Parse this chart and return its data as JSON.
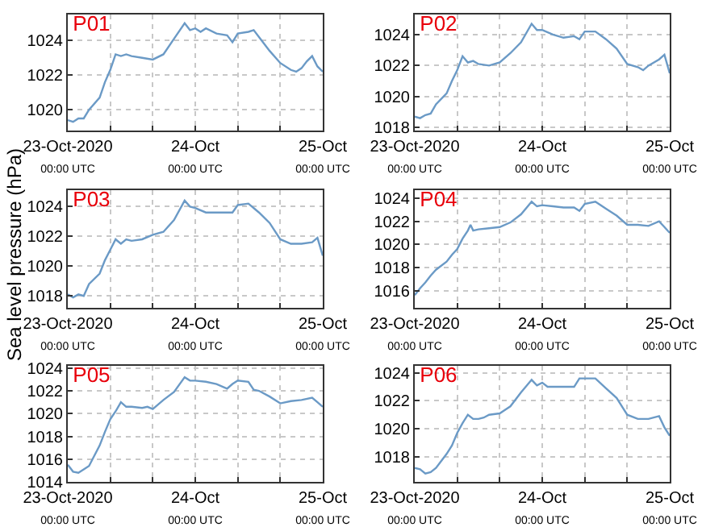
{
  "chart_data": [
    {
      "type": "line",
      "title": "P01",
      "grid": true,
      "ylim": [
        1018.8,
        1025.5
      ],
      "yticks": [
        1020,
        1022,
        1024
      ],
      "xlim": [
        "2020-10-23T00:00",
        "2020-10-25T00:00"
      ],
      "xticks": [
        {
          "value": "2020-10-23T00:00",
          "label": "23-Oct-2020\n00:00 UTC"
        },
        {
          "value": "2020-10-23T08:00",
          "label": null
        },
        {
          "value": "2020-10-23T16:00",
          "label": null
        },
        {
          "value": "2020-10-24T00:00",
          "label": "24-Oct\n00:00 UTC"
        },
        {
          "value": "2020-10-24T08:00",
          "label": null
        },
        {
          "value": "2020-10-24T16:00",
          "label": null
        },
        {
          "value": "2020-10-25T00:00",
          "label": "25-Oct\n00:00 UTC"
        }
      ],
      "x": [
        "2020-10-23T00:00",
        "2020-10-23T01:00",
        "2020-10-23T02:00",
        "2020-10-23T03:00",
        "2020-10-23T04:00",
        "2020-10-23T06:00",
        "2020-10-23T07:00",
        "2020-10-23T08:00",
        "2020-10-23T09:00",
        "2020-10-23T10:00",
        "2020-10-23T11:00",
        "2020-10-23T12:00",
        "2020-10-23T14:00",
        "2020-10-23T16:00",
        "2020-10-23T18:00",
        "2020-10-23T20:00",
        "2020-10-23T22:00",
        "2020-10-23T23:00",
        "2020-10-24T00:00",
        "2020-10-24T01:00",
        "2020-10-24T02:00",
        "2020-10-24T04:00",
        "2020-10-24T06:00",
        "2020-10-24T07:00",
        "2020-10-24T08:00",
        "2020-10-24T10:00",
        "2020-10-24T11:00",
        "2020-10-24T12:00",
        "2020-10-24T14:00",
        "2020-10-24T16:00",
        "2020-10-24T18:00",
        "2020-10-24T19:00",
        "2020-10-24T20:00",
        "2020-10-24T21:00",
        "2020-10-24T22:00",
        "2020-10-24T23:00",
        "2020-10-25T00:00"
      ],
      "series": [
        {
          "color": "#6b9ac6",
          "values": [
            1019.4,
            1019.3,
            1019.5,
            1019.5,
            1020.0,
            1020.7,
            1021.6,
            1022.3,
            1023.2,
            1023.1,
            1023.2,
            1023.1,
            1023.0,
            1022.9,
            1023.2,
            1024.1,
            1025.0,
            1024.6,
            1024.7,
            1024.5,
            1024.7,
            1024.4,
            1024.3,
            1023.9,
            1024.4,
            1024.5,
            1024.6,
            1024.2,
            1023.4,
            1022.7,
            1022.3,
            1022.2,
            1022.4,
            1022.8,
            1023.1,
            1022.5,
            1022.2
          ]
        }
      ]
    },
    {
      "type": "line",
      "title": "P02",
      "grid": true,
      "ylim": [
        1017.8,
        1025.3
      ],
      "yticks": [
        1018,
        1020,
        1022,
        1024
      ],
      "xlim": [
        "2020-10-23T00:00",
        "2020-10-25T00:00"
      ],
      "xticks": [
        {
          "value": "2020-10-23T00:00",
          "label": "23-Oct-2020\n00:00 UTC"
        },
        {
          "value": "2020-10-23T08:00",
          "label": null
        },
        {
          "value": "2020-10-23T16:00",
          "label": null
        },
        {
          "value": "2020-10-24T00:00",
          "label": "24-Oct\n00:00 UTC"
        },
        {
          "value": "2020-10-24T08:00",
          "label": null
        },
        {
          "value": "2020-10-24T16:00",
          "label": null
        },
        {
          "value": "2020-10-25T00:00",
          "label": "25-Oct\n00:00 UTC"
        }
      ],
      "x": [
        "2020-10-23T00:00",
        "2020-10-23T01:00",
        "2020-10-23T02:00",
        "2020-10-23T03:00",
        "2020-10-23T04:00",
        "2020-10-23T06:00",
        "2020-10-23T07:00",
        "2020-10-23T08:00",
        "2020-10-23T09:00",
        "2020-10-23T10:00",
        "2020-10-23T11:00",
        "2020-10-23T12:00",
        "2020-10-23T14:00",
        "2020-10-23T16:00",
        "2020-10-23T18:00",
        "2020-10-23T20:00",
        "2020-10-23T22:00",
        "2020-10-23T23:00",
        "2020-10-24T00:00",
        "2020-10-24T02:00",
        "2020-10-24T04:00",
        "2020-10-24T06:00",
        "2020-10-24T07:00",
        "2020-10-24T08:00",
        "2020-10-24T10:00",
        "2020-10-24T12:00",
        "2020-10-24T14:00",
        "2020-10-24T16:00",
        "2020-10-24T18:00",
        "2020-10-24T19:00",
        "2020-10-24T20:00",
        "2020-10-24T22:00",
        "2020-10-24T23:00",
        "2020-10-25T00:00"
      ],
      "series": [
        {
          "color": "#6b9ac6",
          "values": [
            1018.7,
            1018.6,
            1018.8,
            1018.9,
            1019.5,
            1020.2,
            1021.0,
            1021.7,
            1022.6,
            1022.2,
            1022.3,
            1022.1,
            1022.0,
            1022.2,
            1022.8,
            1023.5,
            1024.7,
            1024.3,
            1024.3,
            1024.0,
            1023.8,
            1023.9,
            1023.7,
            1024.2,
            1024.2,
            1023.7,
            1023.1,
            1022.1,
            1021.9,
            1021.7,
            1022.0,
            1022.4,
            1022.7,
            1021.5
          ]
        }
      ]
    },
    {
      "type": "line",
      "title": "P03",
      "ylabel": "Sea level pressure (hPa)",
      "grid": true,
      "ylim": [
        1017.2,
        1025.1
      ],
      "yticks": [
        1018,
        1020,
        1022,
        1024
      ],
      "xlim": [
        "2020-10-23T00:00",
        "2020-10-25T00:00"
      ],
      "xticks": [
        {
          "value": "2020-10-23T00:00",
          "label": "23-Oct-2020\n00:00 UTC"
        },
        {
          "value": "2020-10-23T08:00",
          "label": null
        },
        {
          "value": "2020-10-23T16:00",
          "label": null
        },
        {
          "value": "2020-10-24T00:00",
          "label": "24-Oct\n00:00 UTC"
        },
        {
          "value": "2020-10-24T08:00",
          "label": null
        },
        {
          "value": "2020-10-24T16:00",
          "label": null
        },
        {
          "value": "2020-10-25T00:00",
          "label": "25-Oct\n00:00 UTC"
        }
      ],
      "x": [
        "2020-10-23T00:00",
        "2020-10-23T01:00",
        "2020-10-23T02:00",
        "2020-10-23T03:00",
        "2020-10-23T04:00",
        "2020-10-23T06:00",
        "2020-10-23T07:00",
        "2020-10-23T08:00",
        "2020-10-23T09:00",
        "2020-10-23T10:00",
        "2020-10-23T11:00",
        "2020-10-23T12:00",
        "2020-10-23T14:00",
        "2020-10-23T16:00",
        "2020-10-23T18:00",
        "2020-10-23T20:00",
        "2020-10-23T22:00",
        "2020-10-23T23:00",
        "2020-10-24T00:00",
        "2020-10-24T02:00",
        "2020-10-24T04:00",
        "2020-10-24T06:00",
        "2020-10-24T07:00",
        "2020-10-24T08:00",
        "2020-10-24T10:00",
        "2020-10-24T12:00",
        "2020-10-24T14:00",
        "2020-10-24T16:00",
        "2020-10-24T18:00",
        "2020-10-24T20:00",
        "2020-10-24T22:00",
        "2020-10-24T23:00",
        "2020-10-25T00:00"
      ],
      "series": [
        {
          "color": "#6b9ac6",
          "values": [
            1018.1,
            1017.9,
            1018.1,
            1018.0,
            1018.8,
            1019.5,
            1020.4,
            1021.1,
            1021.8,
            1021.5,
            1021.8,
            1021.7,
            1021.8,
            1022.1,
            1022.3,
            1023.1,
            1024.4,
            1024.0,
            1023.9,
            1023.6,
            1023.6,
            1023.6,
            1023.6,
            1024.1,
            1024.2,
            1023.6,
            1022.9,
            1021.8,
            1021.5,
            1021.5,
            1021.6,
            1021.9,
            1020.7
          ]
        }
      ]
    },
    {
      "type": "line",
      "title": "P04",
      "grid": true,
      "ylim": [
        1014.5,
        1024.7
      ],
      "yticks": [
        1016,
        1018,
        1020,
        1022,
        1024
      ],
      "xlim": [
        "2020-10-23T00:00",
        "2020-10-25T00:00"
      ],
      "xticks": [
        {
          "value": "2020-10-23T00:00",
          "label": "23-Oct-2020\n00:00 UTC"
        },
        {
          "value": "2020-10-23T08:00",
          "label": null
        },
        {
          "value": "2020-10-23T16:00",
          "label": null
        },
        {
          "value": "2020-10-24T00:00",
          "label": "24-Oct\n00:00 UTC"
        },
        {
          "value": "2020-10-24T08:00",
          "label": null
        },
        {
          "value": "2020-10-24T16:00",
          "label": null
        },
        {
          "value": "2020-10-25T00:00",
          "label": "25-Oct\n00:00 UTC"
        }
      ],
      "x": [
        "2020-10-23T00:00",
        "2020-10-23T01:00",
        "2020-10-23T02:00",
        "2020-10-23T03:00",
        "2020-10-23T04:00",
        "2020-10-23T06:00",
        "2020-10-23T07:00",
        "2020-10-23T08:00",
        "2020-10-23T09:00",
        "2020-10-23T10:00",
        "2020-10-23T10:30",
        "2020-10-23T11:00",
        "2020-10-23T12:00",
        "2020-10-23T14:00",
        "2020-10-23T16:00",
        "2020-10-23T18:00",
        "2020-10-23T20:00",
        "2020-10-23T22:00",
        "2020-10-23T23:00",
        "2020-10-24T00:00",
        "2020-10-24T02:00",
        "2020-10-24T04:00",
        "2020-10-24T06:00",
        "2020-10-24T07:00",
        "2020-10-24T08:00",
        "2020-10-24T10:00",
        "2020-10-24T12:00",
        "2020-10-24T14:00",
        "2020-10-24T16:00",
        "2020-10-24T18:00",
        "2020-10-24T20:00",
        "2020-10-24T22:00",
        "2020-10-24T23:00",
        "2020-10-25T00:00"
      ],
      "series": [
        {
          "color": "#6b9ac6",
          "values": [
            1015.6,
            1016.2,
            1016.7,
            1017.3,
            1017.8,
            1018.5,
            1019.1,
            1019.6,
            1020.5,
            1021.2,
            1021.7,
            1021.2,
            1021.3,
            1021.4,
            1021.5,
            1021.9,
            1022.6,
            1023.7,
            1023.3,
            1023.4,
            1023.3,
            1023.2,
            1023.2,
            1022.9,
            1023.5,
            1023.7,
            1023.1,
            1022.5,
            1021.7,
            1021.7,
            1021.6,
            1022.0,
            1021.5,
            1021.0
          ]
        }
      ]
    },
    {
      "type": "line",
      "title": "P05",
      "grid": true,
      "ylim": [
        1014,
        1024.2
      ],
      "yticks": [
        1014,
        1016,
        1018,
        1020,
        1022,
        1024
      ],
      "xlim": [
        "2020-10-23T00:00",
        "2020-10-25T00:00"
      ],
      "xticks": [
        {
          "value": "2020-10-23T00:00",
          "label": "23-Oct-2020\n00:00 UTC"
        },
        {
          "value": "2020-10-23T08:00",
          "label": null
        },
        {
          "value": "2020-10-23T16:00",
          "label": null
        },
        {
          "value": "2020-10-24T00:00",
          "label": "24-Oct\n00:00 UTC"
        },
        {
          "value": "2020-10-24T08:00",
          "label": null
        },
        {
          "value": "2020-10-24T16:00",
          "label": null
        },
        {
          "value": "2020-10-25T00:00",
          "label": "25-Oct\n00:00 UTC"
        }
      ],
      "x": [
        "2020-10-23T00:00",
        "2020-10-23T01:00",
        "2020-10-23T02:00",
        "2020-10-23T03:00",
        "2020-10-23T04:00",
        "2020-10-23T05:00",
        "2020-10-23T06:00",
        "2020-10-23T07:00",
        "2020-10-23T08:00",
        "2020-10-23T09:00",
        "2020-10-23T10:00",
        "2020-10-23T11:00",
        "2020-10-23T12:00",
        "2020-10-23T14:00",
        "2020-10-23T15:00",
        "2020-10-23T16:00",
        "2020-10-23T18:00",
        "2020-10-23T20:00",
        "2020-10-23T22:00",
        "2020-10-23T23:00",
        "2020-10-24T00:00",
        "2020-10-24T02:00",
        "2020-10-24T04:00",
        "2020-10-24T06:00",
        "2020-10-24T07:00",
        "2020-10-24T08:00",
        "2020-10-24T10:00",
        "2020-10-24T11:00",
        "2020-10-24T12:00",
        "2020-10-24T14:00",
        "2020-10-24T16:00",
        "2020-10-24T18:00",
        "2020-10-24T20:00",
        "2020-10-24T22:00",
        "2020-10-24T23:00",
        "2020-10-25T00:00"
      ],
      "series": [
        {
          "color": "#6b9ac6",
          "values": [
            1015.5,
            1014.9,
            1014.8,
            1015.1,
            1015.4,
            1016.3,
            1017.2,
            1018.4,
            1019.5,
            1020.2,
            1021.0,
            1020.6,
            1020.6,
            1020.5,
            1020.6,
            1020.4,
            1021.2,
            1021.9,
            1023.2,
            1022.9,
            1022.9,
            1022.8,
            1022.6,
            1022.2,
            1022.6,
            1022.9,
            1022.8,
            1022.1,
            1022.0,
            1021.5,
            1020.9,
            1021.1,
            1021.2,
            1021.4,
            1021.0,
            1020.6
          ]
        }
      ]
    },
    {
      "type": "line",
      "title": "P06",
      "grid": true,
      "ylim": [
        1016.2,
        1024.5
      ],
      "yticks": [
        1018,
        1020,
        1022,
        1024
      ],
      "xlim": [
        "2020-10-23T00:00",
        "2020-10-25T00:00"
      ],
      "xticks": [
        {
          "value": "2020-10-23T00:00",
          "label": "23-Oct-2020\n00:00 UTC"
        },
        {
          "value": "2020-10-23T08:00",
          "label": null
        },
        {
          "value": "2020-10-23T16:00",
          "label": null
        },
        {
          "value": "2020-10-24T00:00",
          "label": "24-Oct\n00:00 UTC"
        },
        {
          "value": "2020-10-24T08:00",
          "label": null
        },
        {
          "value": "2020-10-24T16:00",
          "label": null
        },
        {
          "value": "2020-10-25T00:00",
          "label": "25-Oct\n00:00 UTC"
        }
      ],
      "x": [
        "2020-10-23T00:00",
        "2020-10-23T01:00",
        "2020-10-23T02:00",
        "2020-10-23T03:00",
        "2020-10-23T04:00",
        "2020-10-23T05:00",
        "2020-10-23T06:00",
        "2020-10-23T07:00",
        "2020-10-23T08:00",
        "2020-10-23T09:00",
        "2020-10-23T10:00",
        "2020-10-23T11:00",
        "2020-10-23T12:00",
        "2020-10-23T13:00",
        "2020-10-23T14:00",
        "2020-10-23T16:00",
        "2020-10-23T18:00",
        "2020-10-23T20:00",
        "2020-10-23T22:00",
        "2020-10-23T23:00",
        "2020-10-24T00:00",
        "2020-10-24T01:00",
        "2020-10-24T04:00",
        "2020-10-24T06:00",
        "2020-10-24T07:00",
        "2020-10-24T10:00",
        "2020-10-24T12:00",
        "2020-10-24T14:00",
        "2020-10-24T16:00",
        "2020-10-24T18:00",
        "2020-10-24T20:00",
        "2020-10-24T22:00",
        "2020-10-24T23:00",
        "2020-10-25T00:00"
      ],
      "series": [
        {
          "color": "#6b9ac6",
          "values": [
            1017.2,
            1017.1,
            1016.8,
            1016.9,
            1017.2,
            1017.7,
            1018.2,
            1018.8,
            1019.7,
            1020.4,
            1021.0,
            1020.7,
            1020.7,
            1020.8,
            1021.0,
            1021.1,
            1021.6,
            1022.6,
            1023.5,
            1023.1,
            1023.3,
            1023.0,
            1023.0,
            1023.0,
            1023.6,
            1023.6,
            1022.9,
            1022.2,
            1021.0,
            1020.7,
            1020.7,
            1020.9,
            1020.1,
            1019.5
          ]
        }
      ]
    }
  ]
}
